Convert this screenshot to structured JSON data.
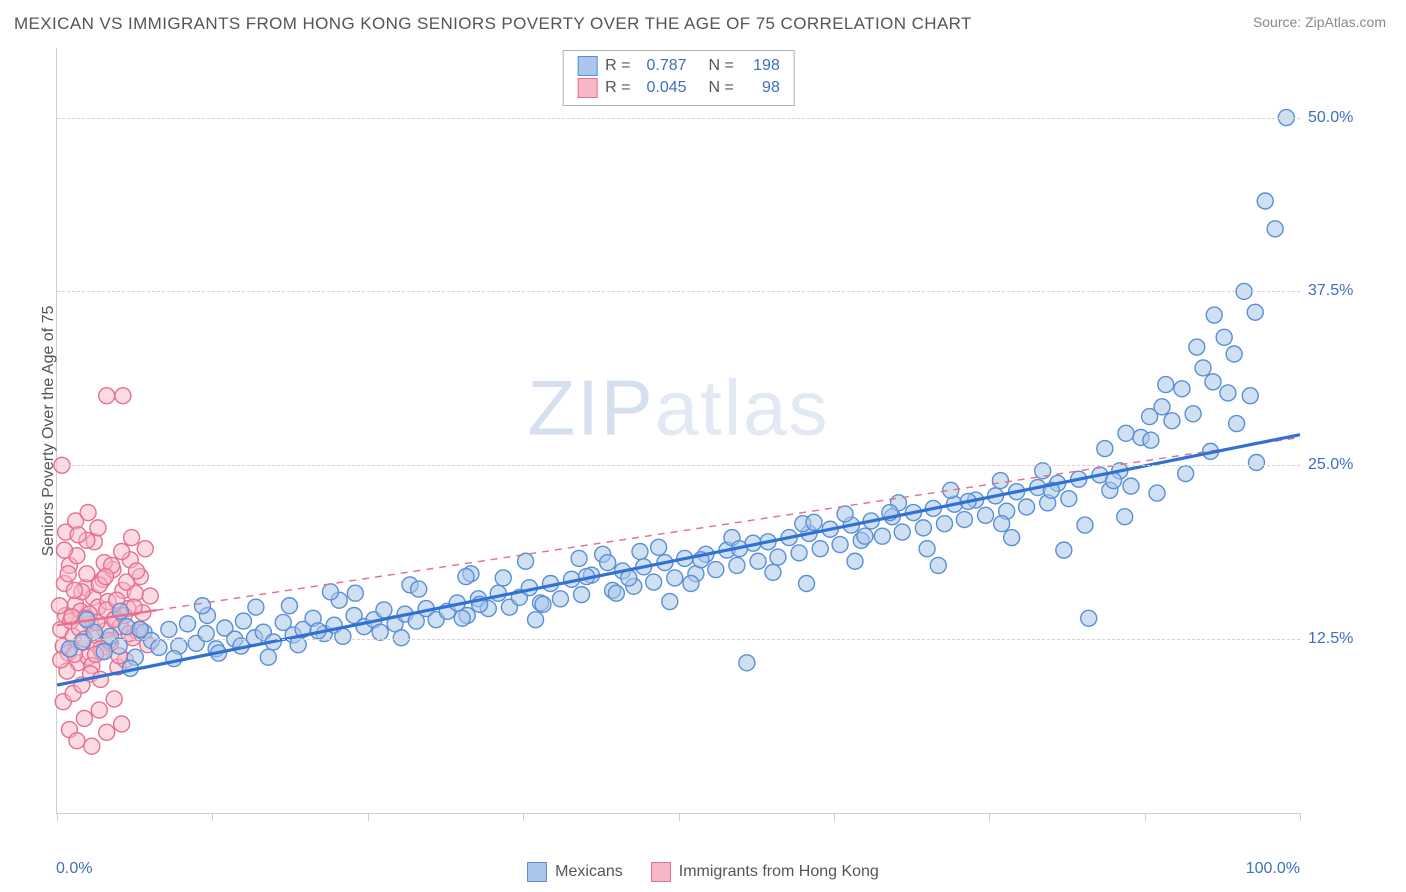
{
  "header": {
    "title": "MEXICAN VS IMMIGRANTS FROM HONG KONG SENIORS POVERTY OVER THE AGE OF 75 CORRELATION CHART",
    "source_prefix": "Source: ",
    "source_name": "ZipAtlas.com"
  },
  "chart": {
    "type": "scatter",
    "ylabel": "Seniors Poverty Over the Age of 75",
    "xlim": [
      0,
      100
    ],
    "ylim": [
      0,
      55
    ],
    "x_ticks": [
      0,
      12.5,
      25,
      37.5,
      50,
      62.5,
      75,
      87.5,
      100
    ],
    "y_gridlines": [
      12.5,
      25,
      37.5,
      50
    ],
    "y_tick_labels": [
      "12.5%",
      "25.0%",
      "37.5%",
      "50.0%"
    ],
    "x_min_label": "0.0%",
    "x_max_label": "100.0%",
    "background_color": "#ffffff",
    "grid_color": "#d4d4d4",
    "axis_color": "#cfcfcf",
    "label_fontsize": 16,
    "tick_color": "#3f6fbf",
    "watermark_text_bold": "ZIP",
    "watermark_text_light": "atlas",
    "series": [
      {
        "key": "mex",
        "label": "Mexicans",
        "color_fill": "#aac6ea",
        "color_stroke": "#5a8fd6",
        "fill_opacity": 0.55,
        "marker_radius": 8,
        "r_value": "0.787",
        "n_value": "198",
        "trend": {
          "x1": 0,
          "y1": 9.2,
          "x2": 100,
          "y2": 27.2,
          "stroke": "#2f72d4",
          "width": 3.2,
          "solid_until_x": 100
        },
        "points": [
          [
            1,
            11.8
          ],
          [
            2,
            12.3
          ],
          [
            3,
            13.0
          ],
          [
            3.8,
            11.6
          ],
          [
            4.3,
            12.7
          ],
          [
            5,
            12.0
          ],
          [
            5.6,
            13.4
          ],
          [
            6.3,
            11.2
          ],
          [
            7,
            13.0
          ],
          [
            7.6,
            12.4
          ],
          [
            8.2,
            11.9
          ],
          [
            9,
            13.2
          ],
          [
            9.8,
            12.0
          ],
          [
            10.5,
            13.6
          ],
          [
            11.2,
            12.2
          ],
          [
            12,
            12.9
          ],
          [
            12.8,
            11.8
          ],
          [
            13.5,
            13.3
          ],
          [
            14.3,
            12.5
          ],
          [
            15,
            13.8
          ],
          [
            15.9,
            12.6
          ],
          [
            16.6,
            13.0
          ],
          [
            17.4,
            12.3
          ],
          [
            18.2,
            13.7
          ],
          [
            19,
            12.8
          ],
          [
            19.8,
            13.2
          ],
          [
            20.6,
            14.0
          ],
          [
            21.5,
            12.9
          ],
          [
            22.3,
            13.5
          ],
          [
            23,
            12.7
          ],
          [
            23.9,
            14.2
          ],
          [
            24.7,
            13.4
          ],
          [
            25.5,
            13.9
          ],
          [
            26.3,
            14.6
          ],
          [
            27.2,
            13.6
          ],
          [
            28,
            14.3
          ],
          [
            28.9,
            13.8
          ],
          [
            29.7,
            14.7
          ],
          [
            30.5,
            13.9
          ],
          [
            31.4,
            14.5
          ],
          [
            32.2,
            15.1
          ],
          [
            33,
            14.2
          ],
          [
            33.9,
            15.4
          ],
          [
            34.7,
            14.7
          ],
          [
            35.5,
            15.8
          ],
          [
            36.4,
            14.8
          ],
          [
            37.2,
            15.5
          ],
          [
            38,
            16.2
          ],
          [
            38.9,
            15.1
          ],
          [
            39.7,
            16.5
          ],
          [
            40.5,
            15.4
          ],
          [
            41.4,
            16.8
          ],
          [
            42.2,
            15.7
          ],
          [
            43,
            17.1
          ],
          [
            43.9,
            18.6
          ],
          [
            44.7,
            16.0
          ],
          [
            45.5,
            17.4
          ],
          [
            46.4,
            16.3
          ],
          [
            47.2,
            17.7
          ],
          [
            48,
            16.6
          ],
          [
            48.9,
            18.0
          ],
          [
            49.7,
            16.9
          ],
          [
            50.5,
            18.3
          ],
          [
            51.4,
            17.2
          ],
          [
            52.2,
            18.6
          ],
          [
            53,
            17.5
          ],
          [
            53.9,
            18.9
          ],
          [
            54.7,
            17.8
          ],
          [
            55.5,
            10.8
          ],
          [
            56.4,
            18.1
          ],
          [
            57.2,
            19.5
          ],
          [
            58,
            18.4
          ],
          [
            58.9,
            19.8
          ],
          [
            59.7,
            18.7
          ],
          [
            60.5,
            20.1
          ],
          [
            61.4,
            19.0
          ],
          [
            62.2,
            20.4
          ],
          [
            63,
            19.3
          ],
          [
            63.9,
            20.7
          ],
          [
            64.7,
            19.6
          ],
          [
            65.5,
            21.0
          ],
          [
            66.4,
            19.9
          ],
          [
            67.2,
            21.3
          ],
          [
            68,
            20.2
          ],
          [
            68.9,
            21.6
          ],
          [
            69.7,
            20.5
          ],
          [
            70.5,
            21.9
          ],
          [
            71.4,
            20.8
          ],
          [
            72.2,
            22.2
          ],
          [
            73,
            21.1
          ],
          [
            73.9,
            22.5
          ],
          [
            74.7,
            21.4
          ],
          [
            75.5,
            22.8
          ],
          [
            76.4,
            21.7
          ],
          [
            77.2,
            23.1
          ],
          [
            78,
            22.0
          ],
          [
            78.9,
            23.4
          ],
          [
            79.7,
            22.3
          ],
          [
            80.5,
            23.7
          ],
          [
            81.4,
            22.6
          ],
          [
            82.2,
            24.0
          ],
          [
            83,
            14.0
          ],
          [
            83.9,
            24.3
          ],
          [
            84.7,
            23.2
          ],
          [
            85.5,
            24.6
          ],
          [
            86.4,
            23.5
          ],
          [
            87.2,
            27.0
          ],
          [
            88,
            26.8
          ],
          [
            88.9,
            29.2
          ],
          [
            89.7,
            28.2
          ],
          [
            90.5,
            30.5
          ],
          [
            91.4,
            28.7
          ],
          [
            92.2,
            32.0
          ],
          [
            93,
            31.0
          ],
          [
            93.9,
            34.2
          ],
          [
            94.7,
            33.0
          ],
          [
            95.5,
            37.5
          ],
          [
            96.4,
            36.0
          ],
          [
            97.2,
            44.0
          ],
          [
            98,
            42.0
          ],
          [
            98.9,
            50.0
          ],
          [
            96.5,
            25.2
          ],
          [
            90.8,
            24.4
          ],
          [
            87.9,
            28.5
          ],
          [
            89.2,
            30.8
          ],
          [
            91.7,
            33.5
          ],
          [
            93.1,
            35.8
          ],
          [
            94.2,
            30.2
          ],
          [
            86.0,
            27.3
          ],
          [
            84.3,
            26.2
          ],
          [
            12.1,
            14.2
          ],
          [
            18.7,
            14.9
          ],
          [
            24.0,
            15.8
          ],
          [
            28.4,
            16.4
          ],
          [
            33.3,
            17.2
          ],
          [
            37.7,
            18.1
          ],
          [
            42.6,
            17.0
          ],
          [
            46.9,
            18.8
          ],
          [
            51.8,
            18.2
          ],
          [
            56.0,
            19.4
          ],
          [
            60.0,
            20.8
          ],
          [
            63.4,
            21.5
          ],
          [
            67.7,
            22.3
          ],
          [
            71.9,
            23.2
          ],
          [
            75.9,
            23.9
          ],
          [
            79.3,
            24.6
          ],
          [
            5.1,
            14.5
          ],
          [
            9.4,
            11.1
          ],
          [
            13.0,
            11.5
          ],
          [
            16.0,
            14.8
          ],
          [
            19.4,
            12.1
          ],
          [
            22.7,
            15.3
          ],
          [
            26.0,
            13.0
          ],
          [
            29.1,
            16.1
          ],
          [
            32.6,
            14.0
          ],
          [
            35.9,
            16.9
          ],
          [
            39.1,
            15.0
          ],
          [
            42.0,
            18.3
          ],
          [
            45.0,
            15.8
          ],
          [
            48.4,
            19.1
          ],
          [
            51.0,
            16.5
          ],
          [
            54.3,
            19.8
          ],
          [
            57.6,
            17.3
          ],
          [
            60.9,
            20.9
          ],
          [
            64.2,
            18.1
          ],
          [
            67.0,
            21.6
          ],
          [
            70.0,
            19.0
          ],
          [
            73.3,
            22.4
          ],
          [
            76.8,
            19.8
          ],
          [
            80.0,
            23.2
          ],
          [
            82.7,
            20.7
          ],
          [
            85.0,
            23.9
          ],
          [
            5.9,
            10.4
          ],
          [
            11.7,
            14.9
          ],
          [
            17.0,
            11.2
          ],
          [
            22.0,
            15.9
          ],
          [
            27.7,
            12.6
          ],
          [
            32.9,
            17.0
          ],
          [
            38.5,
            13.9
          ],
          [
            44.3,
            18.0
          ],
          [
            49.3,
            15.2
          ],
          [
            54.9,
            19.0
          ],
          [
            60.3,
            16.5
          ],
          [
            65.0,
            19.9
          ],
          [
            70.9,
            17.8
          ],
          [
            76.0,
            20.8
          ],
          [
            81.0,
            18.9
          ],
          [
            85.9,
            21.3
          ],
          [
            88.5,
            23.0
          ],
          [
            92.8,
            26.0
          ],
          [
            94.9,
            28.0
          ],
          [
            96.0,
            30.0
          ],
          [
            2.4,
            13.9
          ],
          [
            6.7,
            13.2
          ],
          [
            14.8,
            12.0
          ],
          [
            21.0,
            13.1
          ],
          [
            34.0,
            15.0
          ],
          [
            46.0,
            16.9
          ]
        ]
      },
      {
        "key": "hk",
        "label": "Immigrants from Hong Kong",
        "color_fill": "#f6b8c6",
        "color_stroke": "#e86f8f",
        "fill_opacity": 0.5,
        "marker_radius": 8,
        "r_value": "0.045",
        "n_value": "98",
        "trend": {
          "x1": 0,
          "y1": 13.5,
          "x2": 100,
          "y2": 27.0,
          "stroke": "#e86f8f",
          "width": 2.4,
          "solid_until_x": 8
        },
        "points": [
          [
            0.3,
            13.2
          ],
          [
            0.5,
            12.0
          ],
          [
            0.7,
            14.2
          ],
          [
            0.9,
            11.5
          ],
          [
            1.1,
            13.8
          ],
          [
            1.3,
            12.7
          ],
          [
            1.5,
            15.0
          ],
          [
            1.7,
            10.8
          ],
          [
            1.9,
            14.5
          ],
          [
            2.1,
            12.3
          ],
          [
            2.3,
            16.2
          ],
          [
            2.5,
            11.2
          ],
          [
            2.7,
            13.6
          ],
          [
            2.9,
            15.5
          ],
          [
            3.1,
            12.8
          ],
          [
            3.3,
            14.8
          ],
          [
            3.5,
            11.8
          ],
          [
            3.7,
            16.8
          ],
          [
            3.9,
            13.1
          ],
          [
            4.1,
            15.2
          ],
          [
            4.3,
            12.2
          ],
          [
            4.5,
            17.5
          ],
          [
            4.7,
            14.0
          ],
          [
            4.9,
            10.5
          ],
          [
            5.1,
            13.4
          ],
          [
            5.3,
            16.0
          ],
          [
            5.5,
            11.0
          ],
          [
            5.7,
            14.7
          ],
          [
            5.9,
            18.2
          ],
          [
            6.1,
            12.6
          ],
          [
            6.3,
            15.8
          ],
          [
            6.5,
            13.0
          ],
          [
            6.7,
            17.0
          ],
          [
            6.9,
            14.4
          ],
          [
            7.1,
            19.0
          ],
          [
            7.3,
            12.1
          ],
          [
            7.5,
            15.6
          ],
          [
            0.4,
            25.0
          ],
          [
            0.2,
            14.9
          ],
          [
            0.6,
            16.5
          ],
          [
            0.8,
            10.2
          ],
          [
            1.0,
            17.8
          ],
          [
            1.2,
            14.1
          ],
          [
            1.4,
            11.4
          ],
          [
            1.6,
            18.5
          ],
          [
            1.8,
            13.3
          ],
          [
            2.0,
            15.9
          ],
          [
            2.2,
            12.5
          ],
          [
            2.4,
            17.2
          ],
          [
            2.6,
            14.3
          ],
          [
            2.8,
            10.6
          ],
          [
            3.0,
            19.5
          ],
          [
            3.2,
            13.7
          ],
          [
            3.4,
            16.4
          ],
          [
            3.6,
            11.6
          ],
          [
            3.8,
            18.0
          ],
          [
            4.0,
            14.6
          ],
          [
            4.2,
            12.4
          ],
          [
            4.4,
            17.8
          ],
          [
            4.6,
            13.9
          ],
          [
            4.8,
            15.3
          ],
          [
            5.0,
            11.3
          ],
          [
            5.2,
            18.8
          ],
          [
            5.4,
            14.2
          ],
          [
            5.6,
            16.6
          ],
          [
            5.8,
            12.9
          ],
          [
            6.0,
            19.8
          ],
          [
            6.2,
            14.8
          ],
          [
            6.4,
            17.4
          ],
          [
            6.6,
            13.2
          ],
          [
            4.0,
            30.0
          ],
          [
            5.3,
            30.0
          ],
          [
            1.0,
            6.0
          ],
          [
            1.6,
            5.2
          ],
          [
            2.2,
            6.8
          ],
          [
            2.8,
            4.8
          ],
          [
            3.4,
            7.4
          ],
          [
            4.0,
            5.8
          ],
          [
            4.6,
            8.2
          ],
          [
            5.2,
            6.4
          ],
          [
            0.5,
            8.0
          ],
          [
            1.3,
            8.6
          ],
          [
            2.0,
            9.2
          ],
          [
            2.7,
            10.0
          ],
          [
            3.5,
            9.6
          ],
          [
            0.7,
            20.2
          ],
          [
            1.5,
            21.0
          ],
          [
            2.4,
            19.6
          ],
          [
            0.3,
            11.0
          ],
          [
            0.9,
            17.2
          ],
          [
            1.7,
            20.0
          ],
          [
            2.5,
            21.6
          ],
          [
            3.3,
            20.5
          ],
          [
            0.6,
            18.9
          ],
          [
            1.4,
            16.0
          ],
          [
            2.3,
            14.0
          ],
          [
            3.1,
            11.4
          ],
          [
            3.9,
            17.0
          ]
        ]
      }
    ]
  },
  "bottom_legend": {
    "series1": "Mexicans",
    "series2": "Immigrants from Hong Kong"
  }
}
